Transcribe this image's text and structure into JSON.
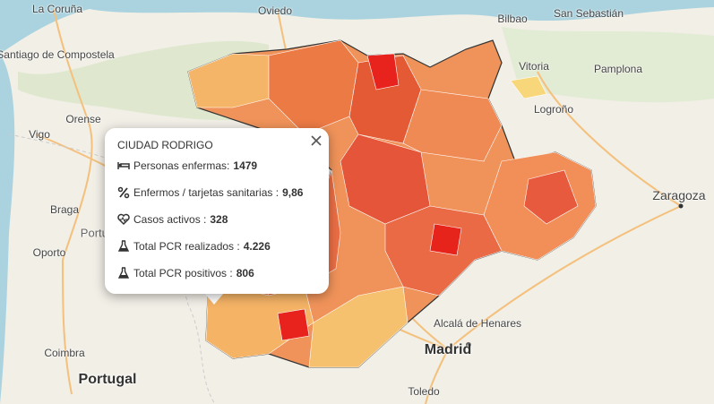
{
  "map": {
    "places": [
      {
        "label": "La Coruña"
      },
      {
        "label": "Oviedo"
      },
      {
        "label": "Bilbao"
      },
      {
        "label": "San Sebastián"
      },
      {
        "label": "Santiago de Compostela"
      },
      {
        "label": "Vitoria"
      },
      {
        "label": "Pamplona"
      },
      {
        "label": "Orense"
      },
      {
        "label": "Logroño"
      },
      {
        "label": "Vigo"
      },
      {
        "label": "Zaragoza"
      },
      {
        "label": "Braga"
      },
      {
        "label": "Portugal"
      },
      {
        "label": "Oporto"
      },
      {
        "label": "Alcalá de Henares"
      },
      {
        "label": "Madrid"
      },
      {
        "label": "Coimbra"
      },
      {
        "label": "Portugal"
      },
      {
        "label": "Toledo"
      }
    ]
  },
  "popup": {
    "title": "CIUDAD RODRIGO",
    "rows": [
      {
        "label": "Personas enfermas:",
        "value": "1479"
      },
      {
        "label": "Enfermos / tarjetas sanitarias :",
        "value": "9,86"
      },
      {
        "label": "Casos activos :",
        "value": "328"
      },
      {
        "label": "Total PCR realizados :",
        "value": "4.226"
      },
      {
        "label": "Total PCR positivos :",
        "value": "806"
      }
    ]
  }
}
